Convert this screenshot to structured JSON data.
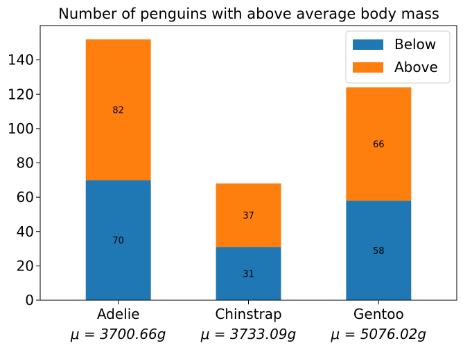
{
  "chart_data": {
    "type": "bar",
    "stacked": true,
    "title": "Number of penguins with above average body mass",
    "xlabel": "",
    "ylabel": "",
    "categories": [
      "Adelie",
      "Chinstrap",
      "Gentoo"
    ],
    "category_sublabels": [
      "μ = 3700.66g",
      "μ = 3733.09g",
      "μ = 5076.02g"
    ],
    "series": [
      {
        "name": "Below",
        "values": [
          70,
          31,
          58
        ],
        "color": "#1f77b4"
      },
      {
        "name": "Above",
        "values": [
          82,
          37,
          66
        ],
        "color": "#ff7f0e"
      }
    ],
    "ylim": [
      0,
      160
    ],
    "yticks": [
      0,
      20,
      40,
      60,
      80,
      100,
      120,
      140
    ],
    "grid": false,
    "legend_position": "upper right"
  }
}
